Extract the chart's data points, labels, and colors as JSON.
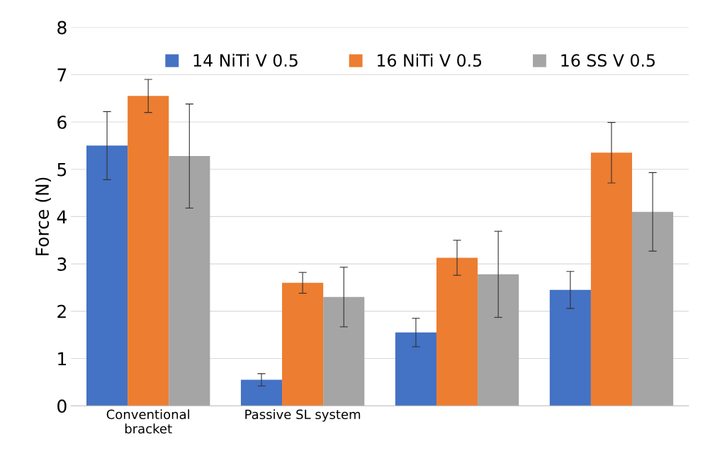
{
  "chart_data": {
    "type": "bar",
    "ylabel": "Force (N)",
    "categories": [
      "Conventional\nbracket",
      "Passive SL system",
      null,
      null
    ],
    "series": [
      {
        "name": "14 NiTi V 0.5",
        "color": "#4472c4",
        "values": [
          5.5,
          0.55,
          1.55,
          2.45
        ],
        "errors": [
          0.72,
          0.13,
          0.3,
          0.39
        ]
      },
      {
        "name": "16 NiTi V 0.5",
        "color": "#ed7d31",
        "values": [
          6.55,
          2.6,
          3.13,
          5.35
        ],
        "errors": [
          0.35,
          0.22,
          0.37,
          0.64
        ]
      },
      {
        "name": "16 SS V 0.5",
        "color": "#a5a5a5",
        "values": [
          5.28,
          2.3,
          2.78,
          4.1
        ],
        "errors": [
          1.1,
          0.63,
          0.91,
          0.83
        ]
      }
    ],
    "ylim": [
      0,
      8
    ],
    "yticks": [
      0,
      1,
      2,
      3,
      4,
      5,
      6,
      7,
      8
    ],
    "grid": "y",
    "legend": "top"
  }
}
